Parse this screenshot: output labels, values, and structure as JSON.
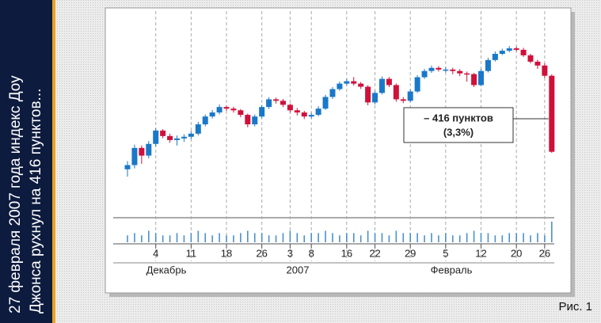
{
  "caption": [
    "27 февраля 2007 года индекс Доу",
    "Джонса рухнул на 416 пунктов..."
  ],
  "figure_label": "Рис. 1",
  "chart_data": {
    "type": "candlestick",
    "categories": [
      null,
      null,
      null,
      null,
      "4",
      null,
      null,
      null,
      null,
      "11",
      null,
      null,
      null,
      null,
      "18",
      null,
      null,
      null,
      null,
      "26",
      null,
      null,
      null,
      "3",
      null,
      null,
      "8",
      null,
      null,
      null,
      null,
      "16",
      null,
      null,
      null,
      "22",
      null,
      null,
      null,
      null,
      "29",
      null,
      null,
      null,
      null,
      "5",
      null,
      null,
      null,
      null,
      "12",
      null,
      null,
      null,
      null,
      "20",
      null,
      null,
      null,
      "26",
      null
    ],
    "period_labels": [
      "Декабрь",
      "2007",
      "Февраль"
    ],
    "ohlc": [
      [
        12120,
        12165,
        12080,
        12143
      ],
      [
        12143,
        12255,
        12125,
        12237
      ],
      [
        12237,
        12250,
        12150,
        12195
      ],
      [
        12195,
        12275,
        12180,
        12259
      ],
      [
        12259,
        12345,
        12245,
        12332
      ],
      [
        12332,
        12340,
        12290,
        12302
      ],
      [
        12302,
        12315,
        12265,
        12280
      ],
      [
        12280,
        12305,
        12250,
        12289
      ],
      [
        12289,
        12312,
        12270,
        12298
      ],
      [
        12298,
        12330,
        12285,
        12315
      ],
      [
        12315,
        12380,
        12305,
        12366
      ],
      [
        12366,
        12420,
        12355,
        12409
      ],
      [
        12409,
        12445,
        12398,
        12431
      ],
      [
        12431,
        12475,
        12420,
        12461
      ],
      [
        12461,
        12470,
        12440,
        12452
      ],
      [
        12452,
        12462,
        12430,
        12443
      ],
      [
        12443,
        12450,
        12405,
        12418
      ],
      [
        12418,
        12425,
        12350,
        12366
      ],
      [
        12366,
        12420,
        12355,
        12409
      ],
      [
        12409,
        12472,
        12400,
        12461
      ],
      [
        12461,
        12515,
        12450,
        12503
      ],
      [
        12503,
        12512,
        12480,
        12495
      ],
      [
        12495,
        12505,
        12460,
        12473
      ],
      [
        12473,
        12480,
        12430,
        12443
      ],
      [
        12443,
        12455,
        12415,
        12431
      ],
      [
        12431,
        12440,
        12395,
        12409
      ],
      [
        12409,
        12430,
        12398,
        12418
      ],
      [
        12418,
        12465,
        12410,
        12452
      ],
      [
        12452,
        12528,
        12445,
        12516
      ],
      [
        12516,
        12570,
        12505,
        12559
      ],
      [
        12559,
        12600,
        12550,
        12589
      ],
      [
        12589,
        12615,
        12578,
        12602
      ],
      [
        12602,
        12625,
        12578,
        12589
      ],
      [
        12589,
        12598,
        12560,
        12572
      ],
      [
        12572,
        12580,
        12470,
        12486
      ],
      [
        12486,
        12550,
        12475,
        12538
      ],
      [
        12538,
        12628,
        12530,
        12615
      ],
      [
        12615,
        12625,
        12570,
        12581
      ],
      [
        12581,
        12590,
        12490,
        12503
      ],
      [
        12503,
        12515,
        12482,
        12495
      ],
      [
        12495,
        12558,
        12488,
        12546
      ],
      [
        12546,
        12635,
        12538,
        12624
      ],
      [
        12624,
        12670,
        12615,
        12658
      ],
      [
        12658,
        12688,
        12648,
        12675
      ],
      [
        12675,
        12685,
        12655,
        12666
      ],
      [
        12666,
        12680,
        12650,
        12666
      ],
      [
        12666,
        12676,
        12640,
        12658
      ],
      [
        12658,
        12668,
        12630,
        12645
      ],
      [
        12645,
        12655,
        12600,
        12641
      ],
      [
        12641,
        12648,
        12570,
        12581
      ],
      [
        12581,
        12670,
        12575,
        12658
      ],
      [
        12658,
        12730,
        12650,
        12718
      ],
      [
        12718,
        12765,
        12710,
        12752
      ],
      [
        12752,
        12780,
        12745,
        12769
      ],
      [
        12769,
        12795,
        12760,
        12782
      ],
      [
        12782,
        12792,
        12765,
        12774
      ],
      [
        12774,
        12785,
        12735,
        12744
      ],
      [
        12744,
        12752,
        12700,
        12709
      ],
      [
        12709,
        12720,
        12670,
        12688
      ],
      [
        12688,
        12700,
        12620,
        12632
      ],
      [
        12632,
        12640,
        12210,
        12216
      ]
    ],
    "volume": [
      3,
      4,
      3,
      5,
      4,
      3,
      3,
      4,
      3,
      4,
      5,
      4,
      3,
      4,
      3,
      3,
      4,
      5,
      4,
      4,
      3,
      3,
      4,
      5,
      4,
      3,
      4,
      4,
      5,
      4,
      3,
      4,
      4,
      3,
      5,
      4,
      4,
      3,
      5,
      4,
      4,
      4,
      3,
      4,
      3,
      4,
      3,
      3,
      4,
      5,
      4,
      4,
      3,
      3,
      4,
      4,
      4,
      3,
      4,
      3,
      9
    ],
    "volume_lim": [
      0,
      10
    ],
    "ylim": [
      12050,
      12960
    ],
    "up_color": "#1a78c8",
    "down_color": "#d0103a",
    "volume_color": "#4a90d0",
    "grid": true,
    "annotation": [
      "– 416 пунктов",
      "(3,3%)"
    ]
  }
}
